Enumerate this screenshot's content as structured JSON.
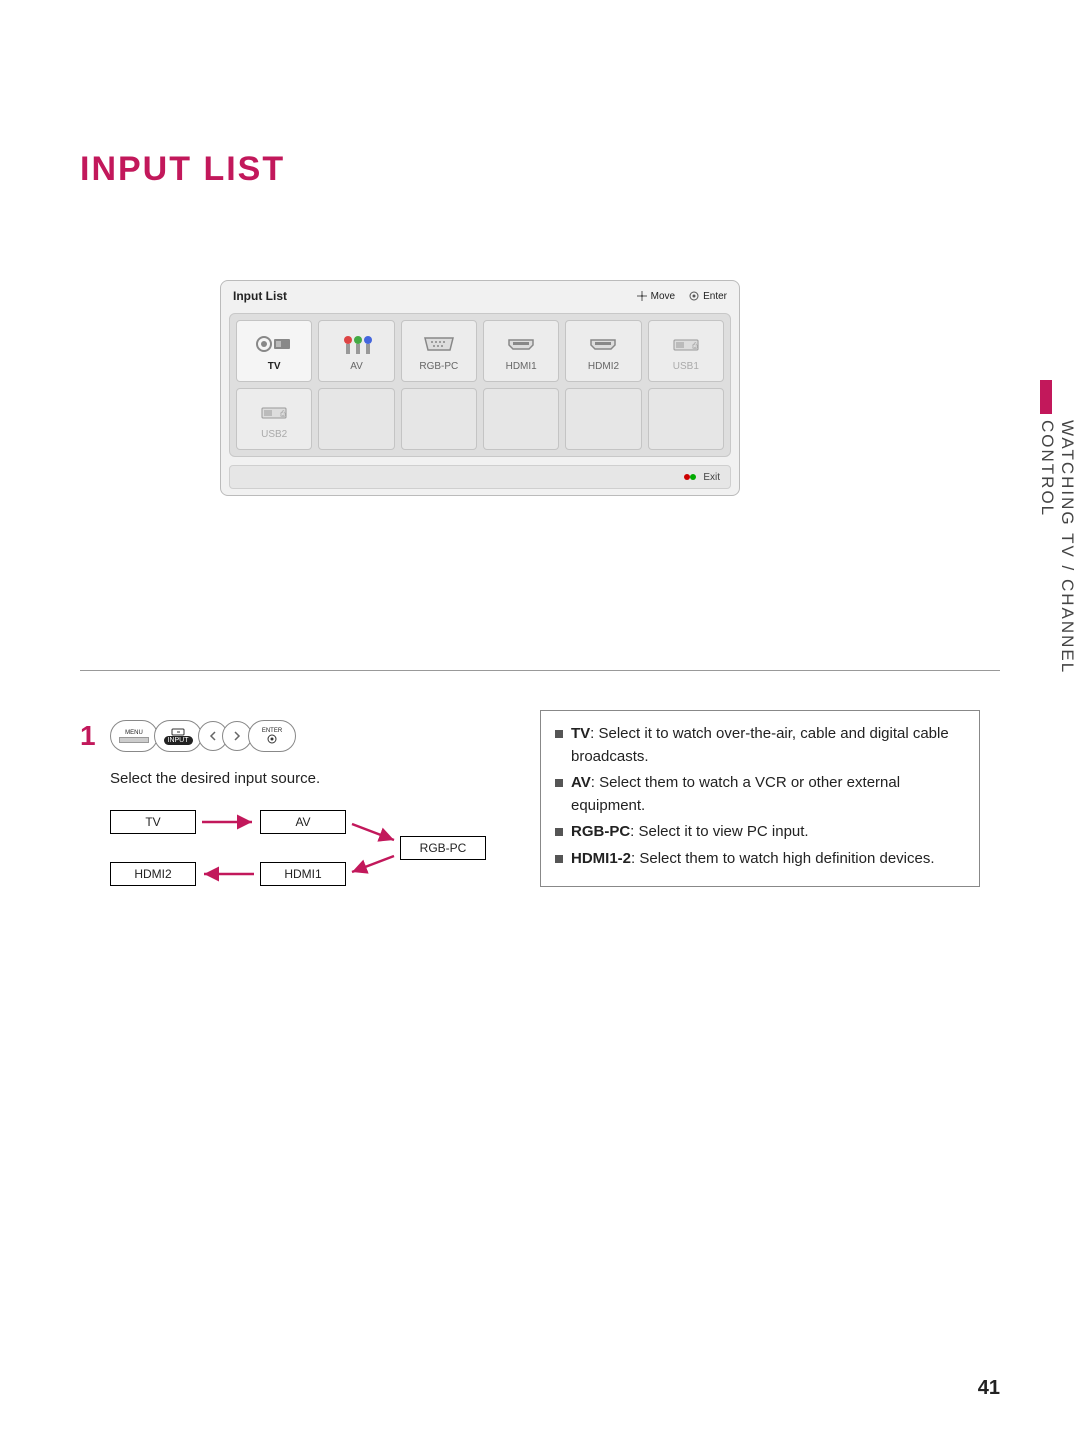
{
  "page": {
    "title": "INPUT LIST",
    "section_tab": "WATCHING TV / CHANNEL CONTROL",
    "page_number": "41",
    "accent_color": "#c2185b"
  },
  "osd": {
    "title": "Input List",
    "hint_move": "Move",
    "hint_enter": "Enter",
    "exit_label": "Exit",
    "cells": [
      {
        "label": "TV",
        "icon": "tv",
        "state": "selected"
      },
      {
        "label": "AV",
        "icon": "av",
        "state": "normal"
      },
      {
        "label": "RGB-PC",
        "icon": "vga",
        "state": "normal"
      },
      {
        "label": "HDMI1",
        "icon": "hdmi",
        "state": "normal"
      },
      {
        "label": "HDMI2",
        "icon": "hdmi",
        "state": "normal"
      },
      {
        "label": "USB1",
        "icon": "usb",
        "state": "disabled"
      },
      {
        "label": "USB2",
        "icon": "usb",
        "state": "disabled"
      },
      {
        "label": "",
        "icon": "",
        "state": "empty"
      },
      {
        "label": "",
        "icon": "",
        "state": "empty"
      },
      {
        "label": "",
        "icon": "",
        "state": "empty"
      },
      {
        "label": "",
        "icon": "",
        "state": "empty"
      },
      {
        "label": "",
        "icon": "",
        "state": "empty"
      }
    ]
  },
  "step": {
    "number": "1",
    "instruction": "Select the desired input source.",
    "remote_buttons": {
      "menu": "MENU",
      "input": "INPUT",
      "enter": "ENTER"
    },
    "flow": {
      "tv": "TV",
      "av": "AV",
      "rgbpc": "RGB-PC",
      "hdmi1": "HDMI1",
      "hdmi2": "HDMI2"
    }
  },
  "info": {
    "items": [
      {
        "term": "TV",
        "desc": ": Select it to watch over-the-air, cable and digital cable broadcasts."
      },
      {
        "term": "AV",
        "desc": ": Select them to watch a VCR or other external equipment."
      },
      {
        "term": "RGB-PC",
        "desc": ": Select it to view PC input."
      },
      {
        "term": "HDMI1-2",
        "desc": ": Select them to watch high definition devices."
      }
    ]
  }
}
